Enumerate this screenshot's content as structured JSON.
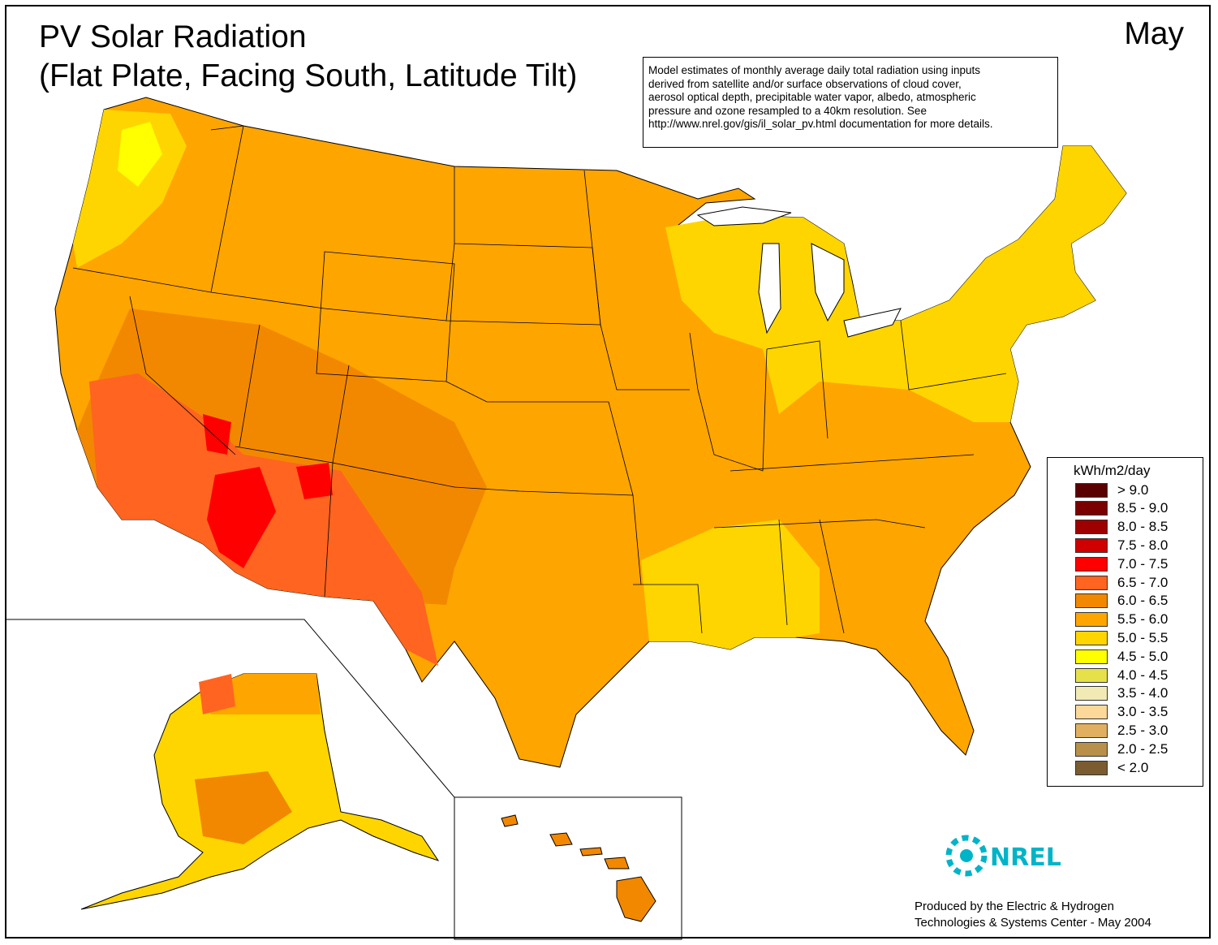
{
  "title_line1": "PV Solar Radiation",
  "title_line2": "(Flat Plate, Facing South, Latitude Tilt)",
  "month": "May",
  "note_lines": [
    "Model estimates of monthly average daily total radiation using inputs",
    "derived from satellite and/or surface observations of cloud cover,",
    "aerosol optical depth, precipitable water vapor, albedo, atmospheric",
    "pressure and ozone resampled to a 40km resolution.  See",
    "http://www.nrel.gov/gis/il_solar_pv.html documentation for more details."
  ],
  "legend": {
    "title": "kWh/m2/day",
    "items": [
      {
        "label": "> 9.0",
        "color": "#5a0000"
      },
      {
        "label": "8.5 - 9.0",
        "color": "#7a0000"
      },
      {
        "label": "8.0 - 8.5",
        "color": "#9e0000"
      },
      {
        "label": "7.5 - 8.0",
        "color": "#d10000"
      },
      {
        "label": "7.0 - 7.5",
        "color": "#ff0000"
      },
      {
        "label": "6.5 - 7.0",
        "color": "#ff6420"
      },
      {
        "label": "6.0 - 6.5",
        "color": "#f28800"
      },
      {
        "label": "5.5 - 6.0",
        "color": "#ffa500"
      },
      {
        "label": "5.0 - 5.5",
        "color": "#ffd500"
      },
      {
        "label": "4.5 - 5.0",
        "color": "#ffff00"
      },
      {
        "label": "4.0 - 4.5",
        "color": "#e6e04a"
      },
      {
        "label": "3.5 - 4.0",
        "color": "#f2eab4"
      },
      {
        "label": "3.0 - 3.5",
        "color": "#fcd89a"
      },
      {
        "label": "2.5 - 3.0",
        "color": "#e0b060"
      },
      {
        "label": "2.0 - 2.5",
        "color": "#b8904a"
      },
      {
        "label": "< 2.0",
        "color": "#7a5c30"
      }
    ]
  },
  "logo_text": "NREL",
  "logo_color": "#00b4c8",
  "credit_lines": [
    "Produced by the Electric & Hydrogen",
    "Technologies & Systems Center - May 2004"
  ]
}
